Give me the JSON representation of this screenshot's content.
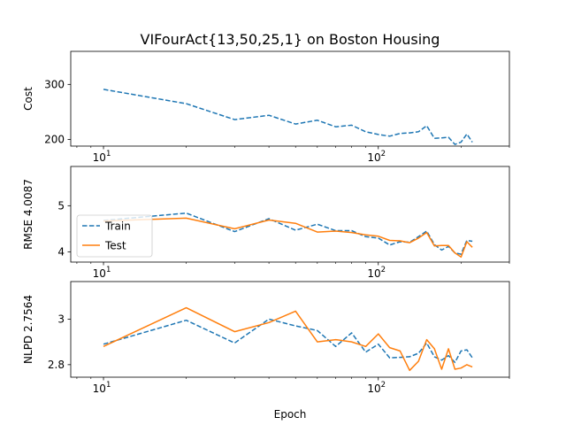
{
  "figure": {
    "title": "VIFourAct{13,50,25,1} on Boston Housing"
  },
  "colors": {
    "train": "#1f77b4",
    "test": "#ff7f0e",
    "axis": "#000000"
  },
  "chart_data": [
    {
      "type": "line",
      "ylabel": "Cost",
      "xlabel": "",
      "xscale": "log",
      "xlim": [
        7.6,
        300
      ],
      "ylim": [
        188,
        360
      ],
      "yticks": [
        200,
        300
      ],
      "xtick_labels": [
        {
          "base": "10",
          "exp": "1"
        },
        {
          "base": "10",
          "exp": "2"
        }
      ],
      "series": [
        {
          "name": "",
          "style": "dashed",
          "color": "#1f77b4",
          "x": [
            10,
            20,
            30,
            40,
            50,
            60,
            70,
            80,
            90,
            100,
            110,
            120,
            130,
            140,
            150,
            160,
            170,
            180,
            190,
            200,
            210,
            220
          ],
          "y": [
            291,
            265,
            236,
            244,
            228,
            235,
            223,
            226,
            214,
            209,
            206,
            211,
            212,
            214,
            225,
            202,
            203,
            204,
            191,
            195,
            210,
            195
          ]
        }
      ]
    },
    {
      "type": "line",
      "ylabel": "RMSE 4.0087",
      "xlabel": "",
      "xscale": "log",
      "xlim": [
        7.6,
        300
      ],
      "ylim": [
        3.78,
        5.85
      ],
      "yticks": [
        4,
        5
      ],
      "xtick_labels": [
        {
          "base": "10",
          "exp": "1"
        },
        {
          "base": "10",
          "exp": "2"
        }
      ],
      "legend": {
        "placement": "center-left",
        "entries": [
          "Train",
          "Test"
        ]
      },
      "series": [
        {
          "name": "Train",
          "style": "dashed",
          "color": "#1f77b4",
          "x": [
            10,
            20,
            30,
            40,
            50,
            60,
            70,
            80,
            90,
            100,
            110,
            120,
            130,
            140,
            150,
            160,
            170,
            180,
            190,
            200,
            210,
            220
          ],
          "y": [
            4.68,
            4.84,
            4.44,
            4.72,
            4.47,
            4.6,
            4.46,
            4.46,
            4.33,
            4.3,
            4.15,
            4.22,
            4.21,
            4.33,
            4.45,
            4.16,
            4.04,
            4.12,
            3.98,
            3.95,
            4.25,
            4.23
          ]
        },
        {
          "name": "Test",
          "style": "solid",
          "color": "#ff7f0e",
          "x": [
            10,
            20,
            30,
            40,
            50,
            60,
            70,
            80,
            90,
            100,
            110,
            120,
            130,
            140,
            150,
            160,
            170,
            180,
            190,
            200,
            210,
            220
          ],
          "y": [
            4.67,
            4.73,
            4.5,
            4.69,
            4.62,
            4.43,
            4.45,
            4.42,
            4.37,
            4.34,
            4.25,
            4.24,
            4.2,
            4.3,
            4.42,
            4.13,
            4.14,
            4.14,
            3.98,
            3.89,
            4.22,
            4.1
          ]
        }
      ]
    },
    {
      "type": "line",
      "ylabel": "NLPD 2.7564",
      "xlabel": "Epoch",
      "xscale": "log",
      "xlim": [
        7.6,
        300
      ],
      "ylim": [
        2.745,
        3.165
      ],
      "yticks": [
        2.8,
        3.0
      ],
      "xtick_labels": [
        {
          "base": "10",
          "exp": "1"
        },
        {
          "base": "10",
          "exp": "2"
        }
      ],
      "series": [
        {
          "name": "Train",
          "style": "dashed",
          "color": "#1f77b4",
          "x": [
            10,
            20,
            30,
            40,
            50,
            60,
            70,
            80,
            90,
            100,
            110,
            120,
            130,
            140,
            150,
            160,
            170,
            180,
            190,
            200,
            210,
            220
          ],
          "y": [
            2.89,
            2.995,
            2.895,
            3.0,
            2.97,
            2.95,
            2.88,
            2.94,
            2.855,
            2.89,
            2.83,
            2.832,
            2.835,
            2.85,
            2.895,
            2.835,
            2.82,
            2.84,
            2.81,
            2.86,
            2.865,
            2.83
          ]
        },
        {
          "name": "Test",
          "style": "solid",
          "color": "#ff7f0e",
          "x": [
            10,
            20,
            30,
            40,
            50,
            60,
            70,
            80,
            90,
            100,
            110,
            120,
            130,
            140,
            150,
            160,
            170,
            180,
            190,
            200,
            210,
            220
          ],
          "y": [
            2.88,
            3.05,
            2.945,
            2.985,
            3.035,
            2.9,
            2.91,
            2.9,
            2.88,
            2.935,
            2.875,
            2.86,
            2.775,
            2.815,
            2.91,
            2.87,
            2.78,
            2.87,
            2.78,
            2.785,
            2.8,
            2.79
          ]
        }
      ]
    }
  ]
}
